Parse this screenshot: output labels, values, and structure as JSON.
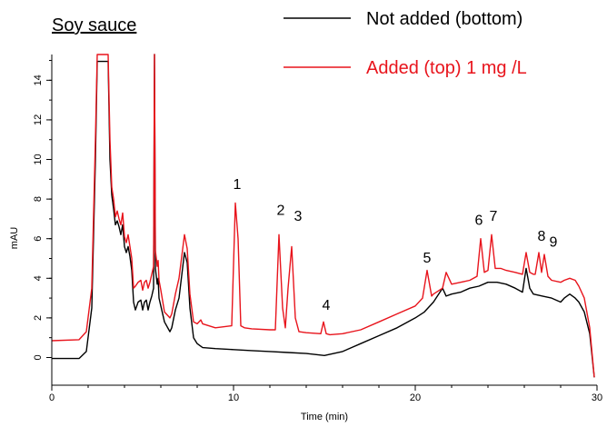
{
  "chart_data": {
    "type": "line",
    "title": "Soy sauce",
    "xlabel": "Time (min)",
    "ylabel": "mAU",
    "xlim": [
      0,
      30
    ],
    "ylim": [
      -1.4,
      15.3
    ],
    "xticks": [
      0,
      10,
      20,
      30
    ],
    "yticks": [
      0,
      2,
      4,
      6,
      8,
      10,
      12,
      14
    ],
    "grid": false,
    "legend_position": "top-right",
    "colors": {
      "not_added": "#000000",
      "added": "#e8141c"
    },
    "series": [
      {
        "name": "Not added (bottom)",
        "color": "#000000",
        "x": [
          0,
          1.5,
          1.9,
          2.2,
          2.4,
          2.5,
          3.1,
          3.2,
          3.3,
          3.4,
          3.5,
          3.6,
          3.7,
          3.8,
          3.9,
          4.0,
          4.1,
          4.2,
          4.3,
          4.4,
          4.5,
          4.6,
          4.75,
          4.9,
          5.0,
          5.1,
          5.2,
          5.3,
          5.4,
          5.5,
          5.6,
          5.65,
          5.7,
          5.8,
          5.85,
          5.9,
          6.0,
          6.2,
          6.5,
          6.6,
          6.8,
          7.0,
          7.3,
          7.45,
          7.6,
          7.8,
          8.0,
          8.3,
          9.0,
          10.0,
          11.0,
          12.0,
          13.0,
          14.0,
          15.0,
          16.0,
          17.0,
          18.0,
          19.0,
          20.0,
          20.5,
          21.0,
          21.5,
          21.7,
          22.0,
          22.5,
          23.0,
          23.5,
          24.0,
          24.5,
          25.0,
          25.5,
          25.9,
          26.1,
          26.3,
          26.5,
          27.0,
          27.5,
          28.0,
          28.2,
          28.5,
          28.8,
          29.0,
          29.3,
          29.6,
          29.85
        ],
        "y": [
          -0.05,
          -0.05,
          0.3,
          2.5,
          10.0,
          14.95,
          14.95,
          10.0,
          8.2,
          7.5,
          6.7,
          6.9,
          6.6,
          6.2,
          6.7,
          5.6,
          5.3,
          5.6,
          5.1,
          4.4,
          2.8,
          2.4,
          2.8,
          2.9,
          2.4,
          2.8,
          2.9,
          2.4,
          2.8,
          3.1,
          3.5,
          15.3,
          4.5,
          3.7,
          4.0,
          3.0,
          2.6,
          1.8,
          1.3,
          1.5,
          2.4,
          3.0,
          5.3,
          4.8,
          2.5,
          1.0,
          0.7,
          0.5,
          0.45,
          0.4,
          0.35,
          0.3,
          0.25,
          0.2,
          0.1,
          0.3,
          0.7,
          1.1,
          1.5,
          2.0,
          2.3,
          2.8,
          3.5,
          3.1,
          3.2,
          3.3,
          3.5,
          3.6,
          3.8,
          3.8,
          3.7,
          3.5,
          3.3,
          4.5,
          3.5,
          3.2,
          3.1,
          3.0,
          2.8,
          3.0,
          3.2,
          3.0,
          2.8,
          2.3,
          1.2,
          -1.0
        ]
      },
      {
        "name": "Added (top) 1 mg /L",
        "color": "#e8141c",
        "x": [
          0,
          1.5,
          1.9,
          2.2,
          2.4,
          2.5,
          3.1,
          3.2,
          3.3,
          3.4,
          3.5,
          3.6,
          3.7,
          3.8,
          3.9,
          4.0,
          4.1,
          4.2,
          4.3,
          4.4,
          4.5,
          4.6,
          4.75,
          4.9,
          5.0,
          5.1,
          5.2,
          5.3,
          5.4,
          5.5,
          5.6,
          5.65,
          5.7,
          5.8,
          5.85,
          5.9,
          6.0,
          6.2,
          6.5,
          6.6,
          6.8,
          7.0,
          7.3,
          7.45,
          7.6,
          7.8,
          8.0,
          8.2,
          8.3,
          9.0,
          9.9,
          10.1,
          10.25,
          10.4,
          10.6,
          11.0,
          12.0,
          12.3,
          12.5,
          12.7,
          12.85,
          13.0,
          13.2,
          13.4,
          13.6,
          14.0,
          14.8,
          14.95,
          15.1,
          15.3,
          16.0,
          17.0,
          18.0,
          19.0,
          20.0,
          20.4,
          20.65,
          20.9,
          21.0,
          21.5,
          21.7,
          22.0,
          22.5,
          23.0,
          23.4,
          23.6,
          23.8,
          24.0,
          24.2,
          24.4,
          24.7,
          25.0,
          25.5,
          25.9,
          26.1,
          26.3,
          26.5,
          26.6,
          26.8,
          26.95,
          27.1,
          27.3,
          27.5,
          28.0,
          28.2,
          28.5,
          28.8,
          29.0,
          29.3,
          29.6,
          29.85
        ],
        "y": [
          0.85,
          0.9,
          1.3,
          3.5,
          11.0,
          15.3,
          15.3,
          11.0,
          8.6,
          8.0,
          7.1,
          7.4,
          7.0,
          6.7,
          7.3,
          6.1,
          5.8,
          6.2,
          5.6,
          5.0,
          3.5,
          3.6,
          3.8,
          3.9,
          3.4,
          3.8,
          3.9,
          3.5,
          3.8,
          4.2,
          4.6,
          15.3,
          5.4,
          4.6,
          4.9,
          3.9,
          3.4,
          2.3,
          2.0,
          2.2,
          3.2,
          4.0,
          6.2,
          5.5,
          3.2,
          1.8,
          1.7,
          1.9,
          1.7,
          1.5,
          1.6,
          7.8,
          6.0,
          1.6,
          1.5,
          1.45,
          1.4,
          1.4,
          6.2,
          2.5,
          1.5,
          3.5,
          5.6,
          2.0,
          1.3,
          1.25,
          1.2,
          1.8,
          1.2,
          1.15,
          1.2,
          1.4,
          1.8,
          2.2,
          2.6,
          3.0,
          4.4,
          3.1,
          3.2,
          3.5,
          4.3,
          3.7,
          3.8,
          3.9,
          4.1,
          6.0,
          4.3,
          4.4,
          6.2,
          4.5,
          4.5,
          4.4,
          4.3,
          4.2,
          5.3,
          4.3,
          4.2,
          4.2,
          5.3,
          4.3,
          5.2,
          4.1,
          3.9,
          3.8,
          3.9,
          4.0,
          3.9,
          3.6,
          3.0,
          1.5,
          -1.0
        ]
      }
    ],
    "annotations": [
      {
        "text": "1",
        "x": 10.2,
        "y": 8.5
      },
      {
        "text": "2",
        "x": 12.6,
        "y": 7.2
      },
      {
        "text": "3",
        "x": 13.55,
        "y": 6.9
      },
      {
        "text": "4",
        "x": 15.1,
        "y": 2.4
      },
      {
        "text": "5",
        "x": 20.65,
        "y": 4.8
      },
      {
        "text": "6",
        "x": 23.5,
        "y": 6.7
      },
      {
        "text": "7",
        "x": 24.3,
        "y": 6.9
      },
      {
        "text": "8",
        "x": 26.95,
        "y": 5.9
      },
      {
        "text": "9",
        "x": 27.6,
        "y": 5.6
      }
    ]
  }
}
